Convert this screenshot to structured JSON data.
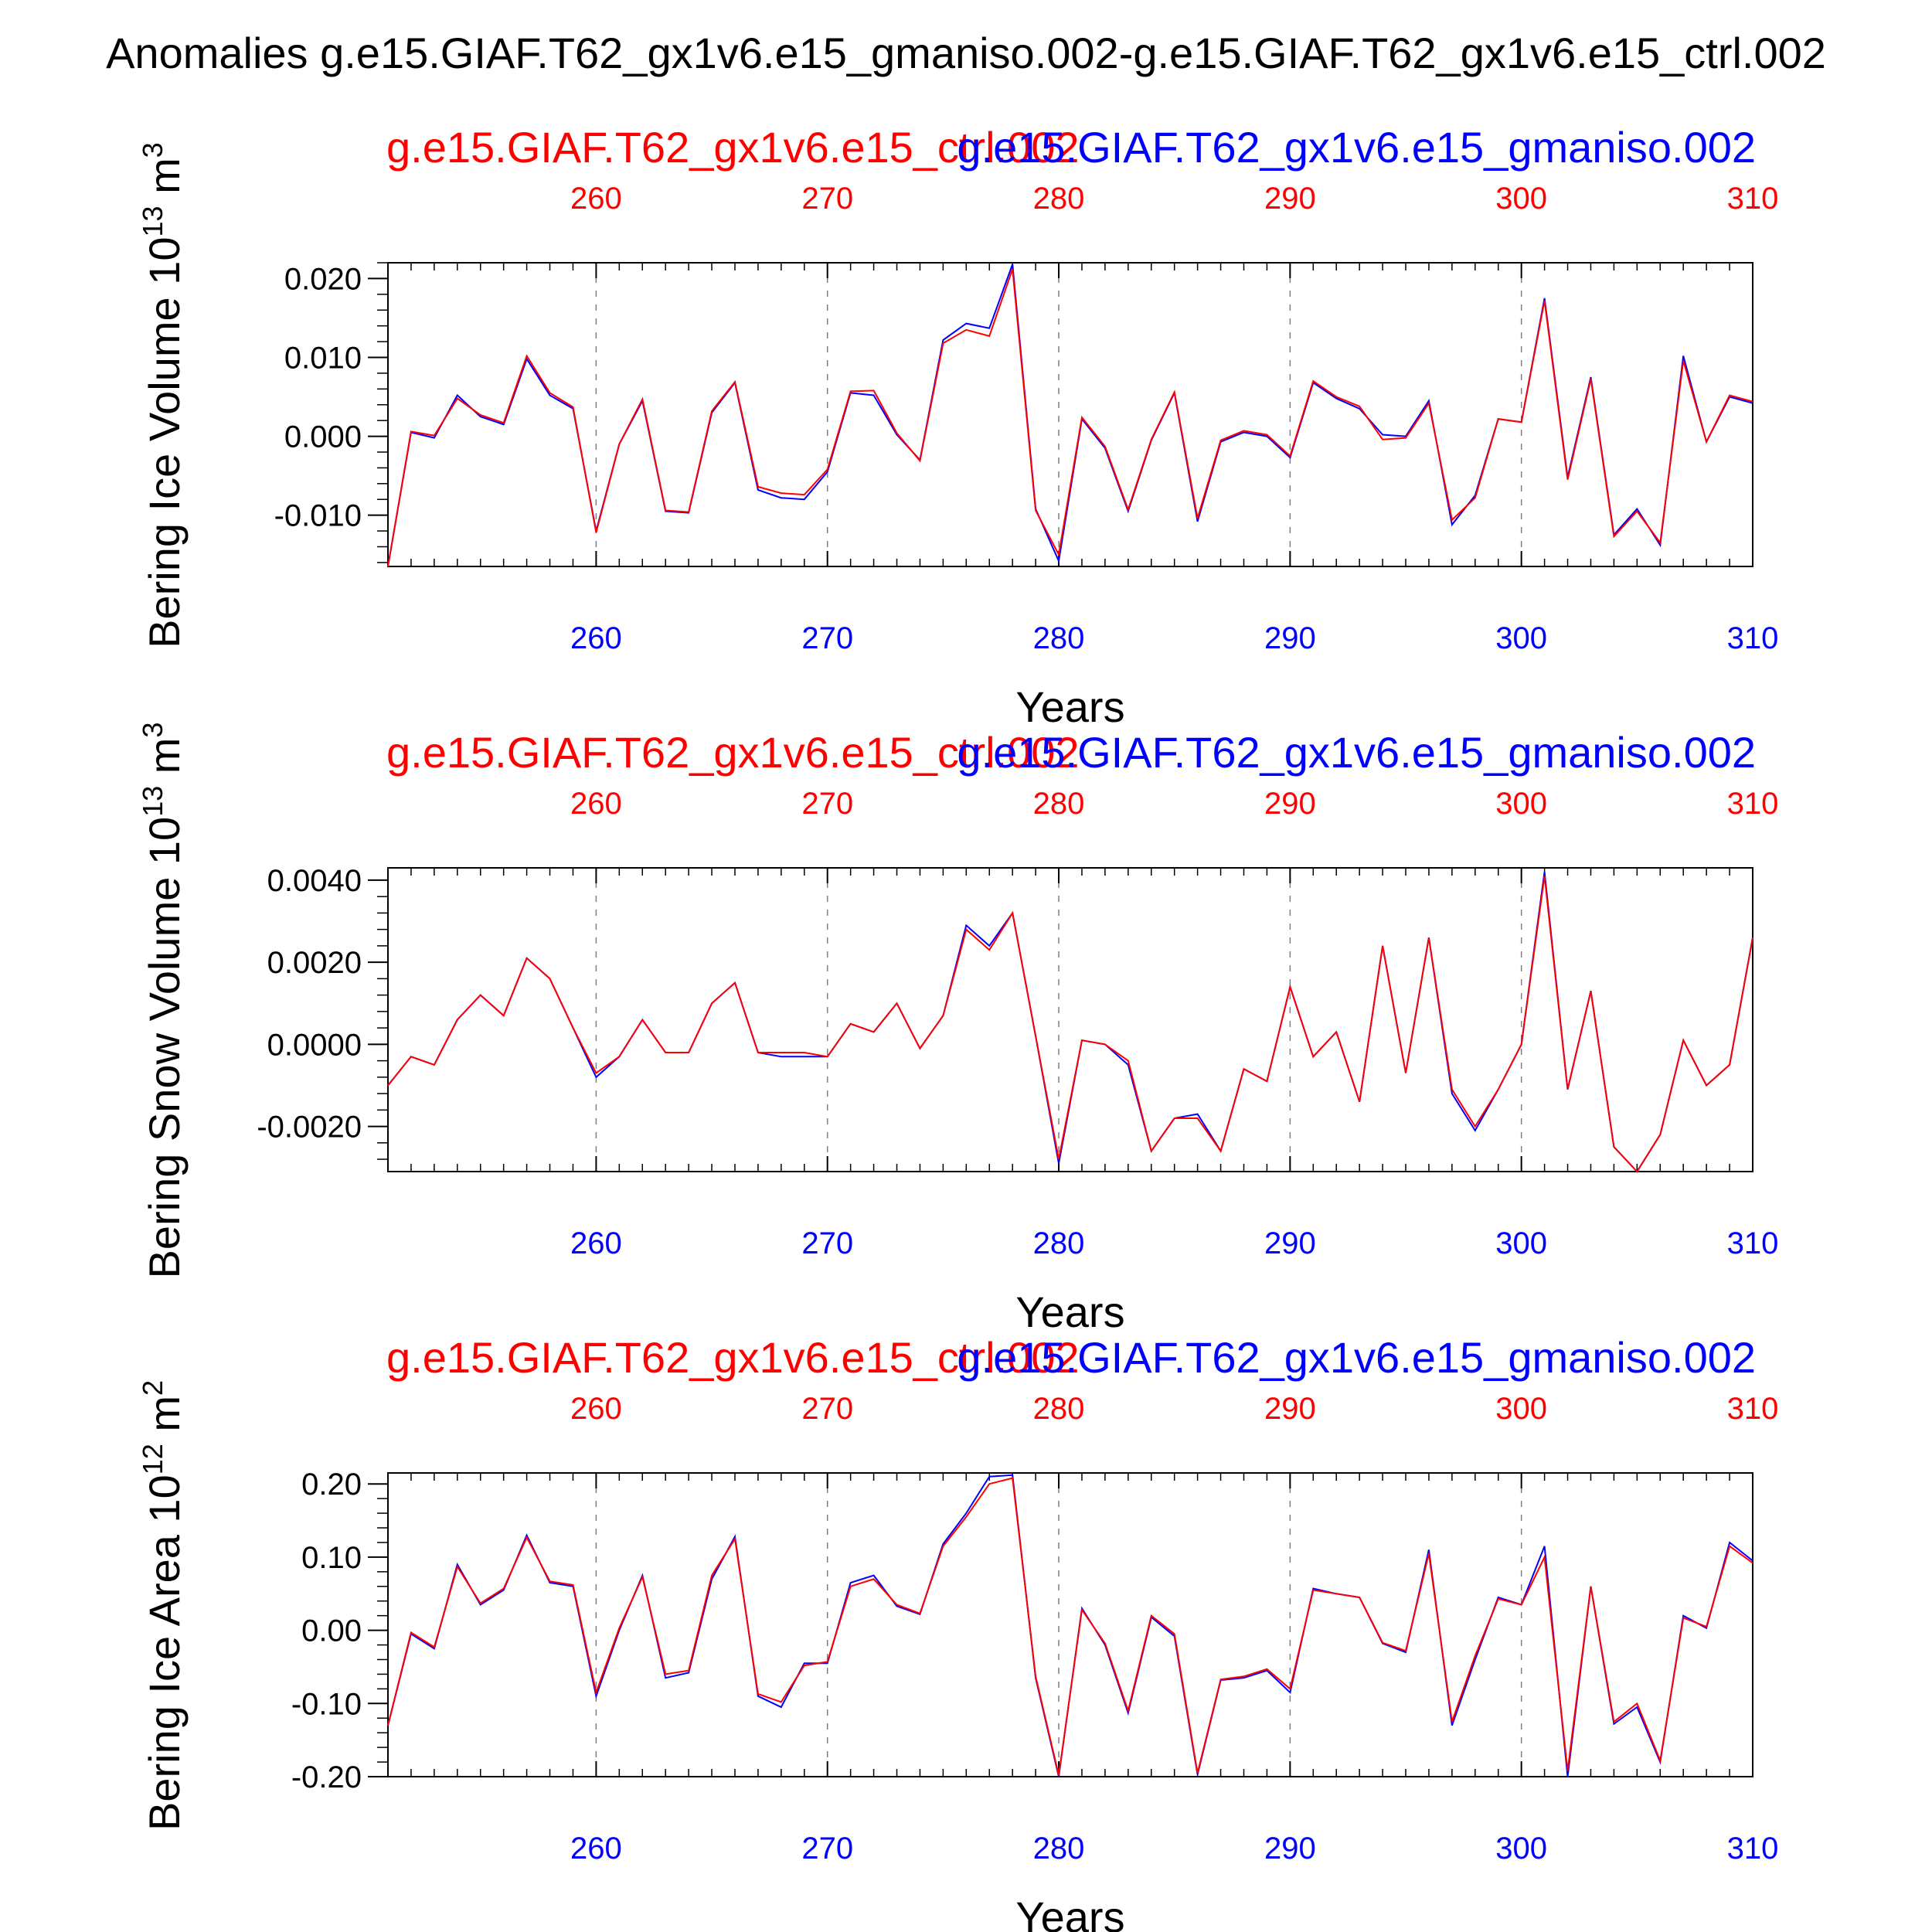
{
  "figure_title": "Anomalies g.e15.GIAF.T62_gx1v6.e15_gmaniso.002-g.e15.GIAF.T62_gx1v6.e15_ctrl.002",
  "colors": {
    "blue": "#0000ff",
    "red": "#ff0000",
    "black": "#000000",
    "grid": "#7f7f7f"
  },
  "chart_data": [
    {
      "type": "line",
      "ylabel_text": "Bering Ice Volume 10",
      "ylabel_exp": "13",
      "ylabel_unit": " m",
      "ylabel_unit_exp": "3",
      "xlabel": "Years",
      "title_blue": "g.e15.GIAF.T62_gx1v6.e15_gmaniso.002",
      "title_red": "g.e15.GIAF.T62_gx1v6.e15_ctrl.002",
      "xlim": [
        251,
        310
      ],
      "ylim": [
        -0.0165,
        0.022
      ],
      "yticks": [
        -0.01,
        0.0,
        0.01,
        0.02
      ],
      "ytick_labels": [
        "-0.010",
        "0.000",
        "0.010",
        "0.020"
      ],
      "xticks": [
        260,
        270,
        280,
        290,
        300,
        310
      ],
      "xtick_labels": [
        "260",
        "270",
        "280",
        "290",
        "300",
        "310"
      ],
      "x_start": 251,
      "series": [
        {
          "name": "g.e15.GIAF.T62_gx1v6.e15_gmaniso.002",
          "color": "#0000ff",
          "values": [
            -0.0165,
            0.0005,
            -0.0002,
            0.0052,
            0.0025,
            0.0015,
            0.0098,
            0.0052,
            0.0035,
            -0.012,
            -0.001,
            0.0045,
            -0.0095,
            -0.0097,
            0.003,
            0.0068,
            -0.0068,
            -0.0078,
            -0.008,
            -0.0045,
            0.0055,
            0.0052,
            0.0002,
            -0.003,
            0.0122,
            0.0143,
            0.0137,
            0.0218,
            -0.0092,
            -0.0158,
            0.0022,
            -0.0015,
            -0.0095,
            -0.0005,
            0.0055,
            -0.0108,
            -0.0007,
            0.0005,
            0.0,
            -0.0027,
            0.0068,
            0.0048,
            0.0035,
            0.0002,
            0.0,
            0.0045,
            -0.0112,
            -0.0075,
            0.0022,
            0.0018,
            0.0175,
            -0.0052,
            0.0075,
            -0.0125,
            -0.0092,
            -0.0138,
            0.0102,
            -0.0007,
            0.005,
            0.0042
          ]
        },
        {
          "name": "g.e15.GIAF.T62_gx1v6.e15_ctrl.002",
          "color": "#ff0000",
          "values": [
            -0.0165,
            0.0006,
            0.0001,
            0.0048,
            0.0027,
            0.0017,
            0.0102,
            0.0055,
            0.0037,
            -0.0122,
            -0.001,
            0.0047,
            -0.0094,
            -0.0096,
            0.0032,
            0.0069,
            -0.0064,
            -0.0072,
            -0.0074,
            -0.0042,
            0.0057,
            0.0058,
            0.0004,
            -0.0031,
            0.0118,
            0.0135,
            0.0127,
            0.0212,
            -0.0094,
            -0.015,
            0.0024,
            -0.0013,
            -0.0093,
            -0.0004,
            0.0056,
            -0.0104,
            -0.0005,
            0.0007,
            0.0002,
            -0.0025,
            0.007,
            0.005,
            0.0038,
            -0.0004,
            -0.0002,
            0.0042,
            -0.0106,
            -0.0078,
            0.0022,
            0.0018,
            0.0172,
            -0.0055,
            0.0073,
            -0.0127,
            -0.0095,
            -0.0135,
            0.0096,
            -0.0007,
            0.0052,
            0.0044
          ]
        }
      ]
    },
    {
      "type": "line",
      "ylabel_text": "Bering Snow Volume 10",
      "ylabel_exp": "13",
      "ylabel_unit": " m",
      "ylabel_unit_exp": "3",
      "xlabel": "Years",
      "title_blue": "g.e15.GIAF.T62_gx1v6.e15_gmaniso.002",
      "title_red": "g.e15.GIAF.T62_gx1v6.e15_ctrl.002",
      "xlim": [
        251,
        310
      ],
      "ylim": [
        -0.0031,
        0.0043
      ],
      "yticks": [
        -0.002,
        0.0,
        0.002,
        0.004
      ],
      "ytick_labels": [
        "-0.0020",
        "0.0000",
        "0.0020",
        "0.0040"
      ],
      "xticks": [
        260,
        270,
        280,
        290,
        300,
        310
      ],
      "xtick_labels": [
        "260",
        "270",
        "280",
        "290",
        "300",
        "310"
      ],
      "x_start": 251,
      "series": [
        {
          "name": "g.e15.GIAF.T62_gx1v6.e15_gmaniso.002",
          "color": "#0000ff",
          "values": [
            -0.001,
            -0.0003,
            -0.0005,
            0.0006,
            0.0012,
            0.0007,
            0.0021,
            0.0016,
            0.0004,
            -0.0008,
            -0.0003,
            0.0006,
            -0.0002,
            -0.0002,
            0.001,
            0.0015,
            -0.0002,
            -0.0003,
            -0.0003,
            -0.0003,
            0.0005,
            0.0003,
            0.001,
            -0.0001,
            0.0007,
            0.0029,
            0.0024,
            0.0032,
            0.0002,
            -0.0029,
            0.0001,
            0.0,
            -0.0005,
            -0.0026,
            -0.0018,
            -0.0017,
            -0.0026,
            -0.0006,
            -0.0009,
            0.0014,
            -0.0003,
            0.0003,
            -0.0014,
            0.0024,
            -0.0007,
            0.0026,
            -0.0012,
            -0.0021,
            -0.0011,
            0.0,
            0.0042,
            -0.0011,
            0.0013,
            -0.0025,
            -0.0031,
            -0.0022,
            0.0001,
            -0.001,
            -0.0005,
            0.0026
          ]
        },
        {
          "name": "g.e15.GIAF.T62_gx1v6.e15_ctrl.002",
          "color": "#ff0000",
          "values": [
            -0.001,
            -0.0003,
            -0.0005,
            0.0006,
            0.0012,
            0.0007,
            0.0021,
            0.0016,
            0.0004,
            -0.0007,
            -0.0003,
            0.0006,
            -0.0002,
            -0.0002,
            0.001,
            0.0015,
            -0.0002,
            -0.0002,
            -0.0002,
            -0.0003,
            0.0005,
            0.0003,
            0.001,
            -0.0001,
            0.0007,
            0.0028,
            0.0023,
            0.0032,
            0.0002,
            -0.0028,
            0.0001,
            0.0,
            -0.0004,
            -0.0026,
            -0.0018,
            -0.0018,
            -0.0026,
            -0.0006,
            -0.0009,
            0.0014,
            -0.0003,
            0.0003,
            -0.0014,
            0.0024,
            -0.0007,
            0.0026,
            -0.0011,
            -0.002,
            -0.0011,
            0.0,
            0.0041,
            -0.0011,
            0.0013,
            -0.0025,
            -0.0031,
            -0.0022,
            0.0001,
            -0.001,
            -0.0005,
            0.0026
          ]
        }
      ]
    },
    {
      "type": "line",
      "ylabel_text": "Bering Ice Area 10",
      "ylabel_exp": "12",
      "ylabel_unit": " m",
      "ylabel_unit_exp": "2",
      "xlabel": "Years",
      "title_blue": "g.e15.GIAF.T62_gx1v6.e15_gmaniso.002",
      "title_red": "g.e15.GIAF.T62_gx1v6.e15_ctrl.002",
      "xlim": [
        251,
        310
      ],
      "ylim": [
        -0.2,
        0.215
      ],
      "yticks": [
        -0.2,
        -0.1,
        0.0,
        0.1,
        0.2
      ],
      "ytick_labels": [
        "-0.20",
        "-0.10",
        "0.00",
        "0.10",
        "0.20"
      ],
      "xticks": [
        260,
        270,
        280,
        290,
        300,
        310
      ],
      "xtick_labels": [
        "260",
        "270",
        "280",
        "290",
        "300",
        "310"
      ],
      "x_start": 251,
      "series": [
        {
          "name": "g.e15.GIAF.T62_gx1v6.e15_gmaniso.002",
          "color": "#0000ff",
          "values": [
            -0.13,
            -0.005,
            -0.025,
            0.09,
            0.035,
            0.055,
            0.13,
            0.065,
            0.06,
            -0.09,
            0.0,
            0.075,
            -0.065,
            -0.058,
            0.07,
            0.128,
            -0.09,
            -0.105,
            -0.045,
            -0.045,
            0.065,
            0.075,
            0.033,
            0.022,
            0.118,
            0.16,
            0.21,
            0.212,
            -0.065,
            -0.2,
            0.03,
            -0.02,
            -0.113,
            0.018,
            -0.008,
            -0.197,
            -0.068,
            -0.065,
            -0.055,
            -0.085,
            0.057,
            0.05,
            0.045,
            -0.018,
            -0.03,
            0.11,
            -0.13,
            -0.04,
            0.045,
            0.035,
            0.115,
            -0.2,
            0.06,
            -0.128,
            -0.105,
            -0.18,
            0.02,
            0.003,
            0.12,
            0.095
          ]
        },
        {
          "name": "g.e15.GIAF.T62_gx1v6.e15_ctrl.002",
          "color": "#ff0000",
          "values": [
            -0.13,
            -0.003,
            -0.023,
            0.087,
            0.037,
            0.057,
            0.127,
            0.067,
            0.062,
            -0.085,
            0.003,
            0.073,
            -0.06,
            -0.055,
            0.075,
            0.125,
            -0.087,
            -0.098,
            -0.048,
            -0.043,
            0.06,
            0.07,
            0.035,
            0.023,
            0.115,
            0.155,
            0.2,
            0.208,
            -0.063,
            -0.198,
            0.028,
            -0.018,
            -0.11,
            0.02,
            -0.005,
            -0.195,
            -0.067,
            -0.063,
            -0.053,
            -0.08,
            0.055,
            0.05,
            0.045,
            -0.017,
            -0.028,
            0.105,
            -0.125,
            -0.035,
            0.043,
            0.035,
            0.1,
            -0.192,
            0.06,
            -0.125,
            -0.1,
            -0.178,
            0.017,
            0.005,
            0.115,
            0.092
          ]
        }
      ]
    }
  ]
}
